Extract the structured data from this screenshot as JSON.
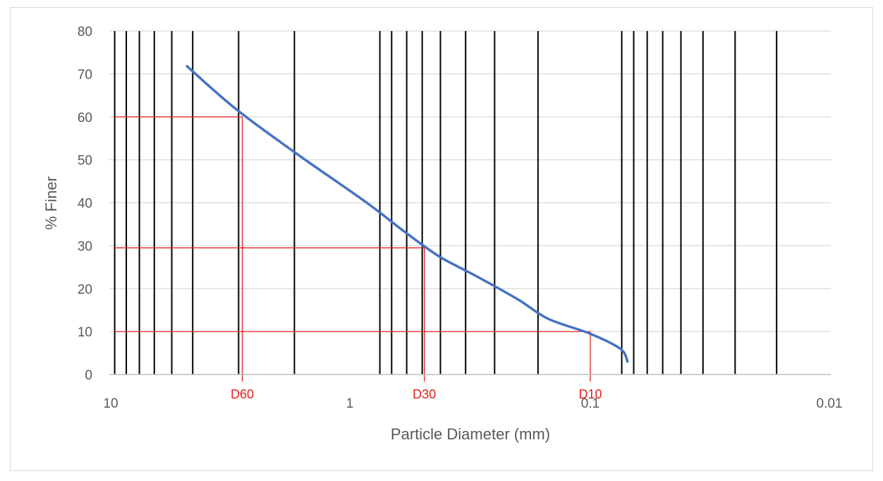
{
  "chart_data": {
    "type": "line",
    "title": "",
    "xlabel": "Particle Diameter (mm)",
    "ylabel": "% Finer",
    "x_scale": "log",
    "x_reversed": true,
    "xlim": [
      10,
      0.01
    ],
    "ylim": [
      0,
      80
    ],
    "y_ticks": [
      0,
      10,
      20,
      30,
      40,
      50,
      60,
      70,
      80
    ],
    "x_tick_labels": [
      "10",
      "1",
      "0.1",
      "0.01"
    ],
    "x_ticks": [
      10,
      1,
      0.1,
      0.01
    ],
    "grid": true,
    "legend": "none",
    "series": [
      {
        "x": [
          4.75,
          3.0,
          1.7,
          0.85,
          0.6,
          0.425,
          0.3,
          0.2,
          0.15,
          0.1,
          0.075,
          0.07
        ],
        "y": [
          71.8,
          62.0,
          51.8,
          40.0,
          33.5,
          27.5,
          23.0,
          17.5,
          13.0,
          9.5,
          6.0,
          3.0
        ],
        "color": "#4472C4"
      }
    ],
    "sieve_lines": [
      9.5,
      8.5,
      7.5,
      6.5,
      5.5,
      4.5,
      2.9,
      1.7,
      0.75,
      0.67,
      0.58,
      0.5,
      0.42,
      0.33,
      0.25,
      0.165,
      0.074,
      0.066,
      0.058,
      0.05,
      0.042,
      0.034,
      0.025,
      0.0168
    ],
    "annotations": [
      {
        "label": "D60",
        "x": 2.8,
        "y": 60,
        "color": "#e02020"
      },
      {
        "label": "D30",
        "x": 0.49,
        "y": 29.5,
        "color": "#e02020"
      },
      {
        "label": "D10",
        "x": 0.1,
        "y": 10,
        "color": "#e02020"
      }
    ]
  }
}
